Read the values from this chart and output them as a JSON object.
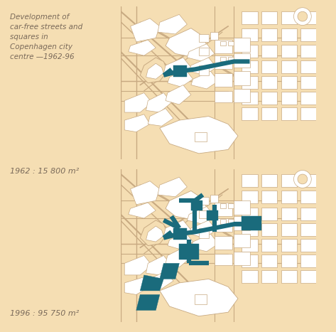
{
  "background_color": "#f5deb3",
  "map_bg": "#f5deb3",
  "block_fill": "#ffffff",
  "block_edge": "#c8aa82",
  "street_fill": "#e8d0a8",
  "ped_color": "#1a6b7c",
  "title_text": "Development of\ncar-free streets and\nsquares in\nCopenhagen city\ncentre —1962-96",
  "label_1962": "1962 : 15 800 m²",
  "label_1996": "1996 : 95 750 m²",
  "title_fontsize": 7.5,
  "label_fontsize": 8.0,
  "text_color": "#7a6a5a"
}
